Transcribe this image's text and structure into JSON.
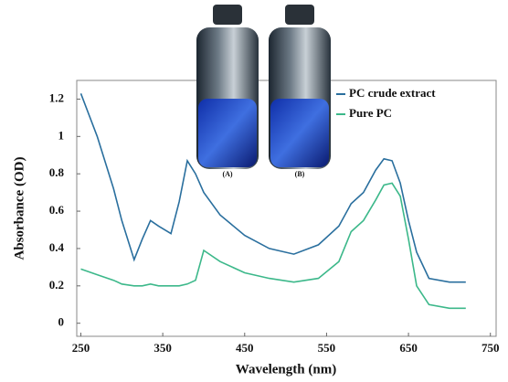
{
  "chart_data": {
    "type": "line",
    "x_label": "Wavelength (nm)",
    "y_label": "Absorbance (OD)",
    "x": [
      250,
      270,
      290,
      300,
      315,
      325,
      335,
      345,
      360,
      370,
      380,
      390,
      400,
      420,
      450,
      480,
      510,
      540,
      565,
      580,
      595,
      610,
      620,
      630,
      640,
      650,
      660,
      675,
      700,
      720
    ],
    "series": [
      {
        "name": "PC crude extract",
        "color": "#2a6f9e",
        "values": [
          1.23,
          1.0,
          0.72,
          0.55,
          0.34,
          0.45,
          0.55,
          0.52,
          0.48,
          0.65,
          0.87,
          0.8,
          0.7,
          0.58,
          0.47,
          0.4,
          0.37,
          0.42,
          0.52,
          0.64,
          0.7,
          0.82,
          0.88,
          0.87,
          0.75,
          0.55,
          0.38,
          0.24,
          0.22,
          0.22
        ]
      },
      {
        "name": "Pure PC",
        "color": "#3cb88a",
        "values": [
          0.29,
          0.26,
          0.23,
          0.21,
          0.2,
          0.2,
          0.21,
          0.2,
          0.2,
          0.2,
          0.21,
          0.23,
          0.39,
          0.33,
          0.27,
          0.24,
          0.22,
          0.24,
          0.33,
          0.49,
          0.55,
          0.66,
          0.74,
          0.75,
          0.68,
          0.45,
          0.2,
          0.1,
          0.08,
          0.08
        ]
      }
    ],
    "xlim": [
      245,
      757
    ],
    "ylim": [
      -0.07,
      1.3
    ],
    "xticks": [
      250,
      350,
      450,
      550,
      650,
      750
    ],
    "yticks": [
      0,
      0.2,
      0.4,
      0.6,
      0.8,
      1,
      1.2
    ],
    "legend": "upper right",
    "annotations": [
      "(A)",
      "(B)"
    ]
  }
}
